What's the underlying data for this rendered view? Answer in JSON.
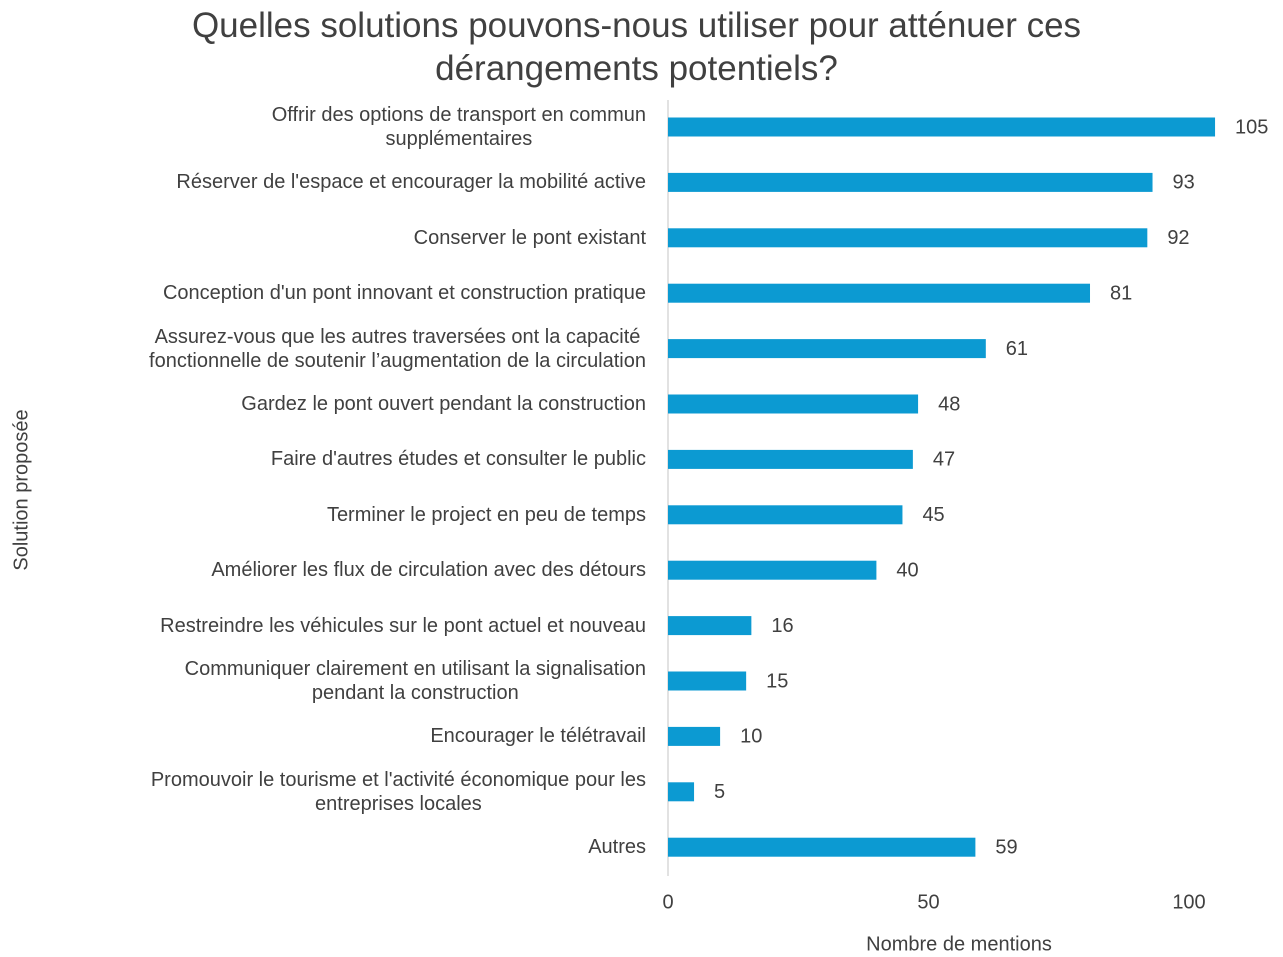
{
  "chart_data": {
    "type": "barh",
    "title": "Quelles solutions pouvons-nous utiliser pour atténuer ces\ndérangements potentiels?",
    "xlabel": "Nombre de mentions",
    "ylabel": "Solution proposée",
    "categories": [
      "Offrir des options de transport en commun\nsupplémentaires",
      "Réserver de l'espace et encourager la mobilité active",
      "Conserver le pont existant",
      "Conception d'un pont innovant et construction pratique",
      "Assurez-vous que les autres traversées ont la capacité\nfonctionnelle de soutenir l’augmentation de la circulation",
      "Gardez le pont ouvert pendant la construction",
      "Faire d'autres études et consulter le public",
      "Terminer le project en peu de temps",
      "Améliorer les flux de circulation avec des détours",
      "Restreindre les véhicules sur le pont actuel et nouveau",
      "Communiquer clairement en utilisant la signalisation\npendant la construction",
      "Encourager le télétravail",
      "Promouvoir le tourisme et l'activité économique pour les\nentreprises locales",
      "Autres"
    ],
    "values": [
      105,
      93,
      92,
      81,
      61,
      48,
      47,
      45,
      40,
      16,
      15,
      10,
      5,
      59
    ],
    "color": "#0c9ad2",
    "xlim": [
      0,
      110
    ],
    "xticks": [
      0,
      50,
      100
    ],
    "grid": false
  }
}
